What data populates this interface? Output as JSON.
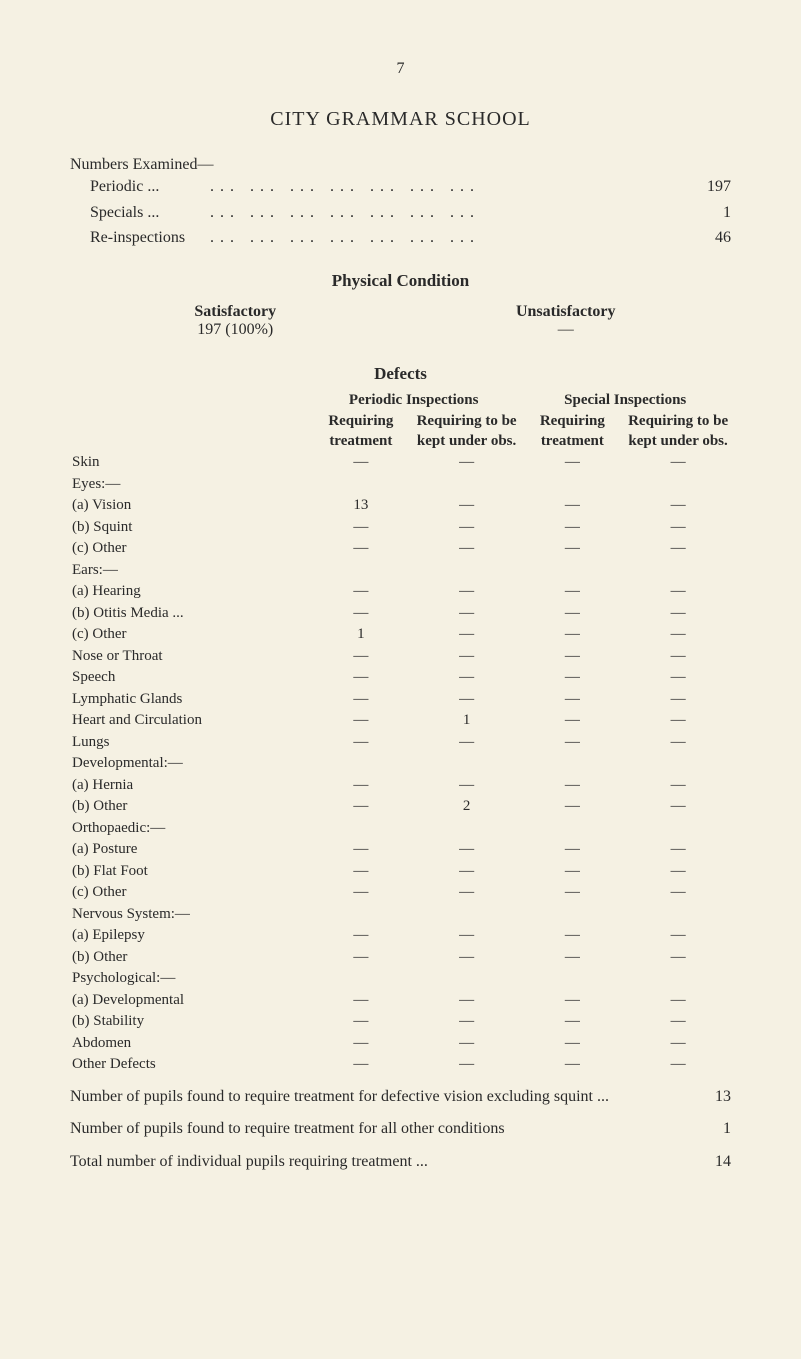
{
  "pageNumber": "7",
  "title": "CITY GRAMMAR SCHOOL",
  "numbersExamined": {
    "heading": "Numbers Examined—",
    "rows": [
      {
        "label": "Periodic ...",
        "value": "197"
      },
      {
        "label": "Specials ...",
        "value": "1"
      },
      {
        "label": "Re-inspections",
        "value": "46"
      }
    ]
  },
  "physicalCondition": {
    "heading": "Physical Condition",
    "satisfactory": {
      "label": "Satisfactory",
      "value": "197 (100%)"
    },
    "unsatisfactory": {
      "label": "Unsatisfactory",
      "value": "—"
    }
  },
  "defects": {
    "heading": "Defects",
    "periodicLabel": "Periodic Inspections",
    "specialLabel": "Special Inspections",
    "colHeaders": {
      "c1": "Requiring treatment",
      "c2": "Requiring to be kept under obs.",
      "c3": "Requiring treatment",
      "c4": "Requiring to be kept under obs."
    },
    "rows": [
      {
        "label": "Skin",
        "indent": 0,
        "vals": [
          "—",
          "—",
          "—",
          "—"
        ]
      },
      {
        "label": "Eyes:—",
        "indent": 0,
        "vals": [
          "",
          "",
          "",
          ""
        ]
      },
      {
        "label": "(a) Vision",
        "indent": 1,
        "vals": [
          "13",
          "—",
          "—",
          "—"
        ]
      },
      {
        "label": "(b) Squint",
        "indent": 1,
        "vals": [
          "—",
          "—",
          "—",
          "—"
        ]
      },
      {
        "label": "(c) Other",
        "indent": 1,
        "vals": [
          "—",
          "—",
          "—",
          "—"
        ]
      },
      {
        "label": "Ears:—",
        "indent": 0,
        "vals": [
          "",
          "",
          "",
          ""
        ]
      },
      {
        "label": "(a) Hearing",
        "indent": 1,
        "vals": [
          "—",
          "—",
          "—",
          "—"
        ]
      },
      {
        "label": "(b) Otitis Media ...",
        "indent": 1,
        "vals": [
          "—",
          "—",
          "—",
          "—"
        ]
      },
      {
        "label": "(c) Other",
        "indent": 1,
        "vals": [
          "1",
          "—",
          "—",
          "—"
        ]
      },
      {
        "label": "Nose or Throat",
        "indent": 0,
        "vals": [
          "—",
          "—",
          "—",
          "—"
        ]
      },
      {
        "label": "Speech",
        "indent": 0,
        "vals": [
          "—",
          "—",
          "—",
          "—"
        ]
      },
      {
        "label": "Lymphatic Glands",
        "indent": 0,
        "vals": [
          "—",
          "—",
          "—",
          "—"
        ]
      },
      {
        "label": "Heart and Circulation",
        "indent": 0,
        "vals": [
          "—",
          "1",
          "—",
          "—"
        ]
      },
      {
        "label": "Lungs",
        "indent": 0,
        "vals": [
          "—",
          "—",
          "—",
          "—"
        ]
      },
      {
        "label": "Developmental:—",
        "indent": 0,
        "vals": [
          "",
          "",
          "",
          ""
        ]
      },
      {
        "label": "(a) Hernia",
        "indent": 1,
        "vals": [
          "—",
          "—",
          "—",
          "—"
        ]
      },
      {
        "label": "(b) Other",
        "indent": 1,
        "vals": [
          "—",
          "2",
          "—",
          "—"
        ]
      },
      {
        "label": "Orthopaedic:—",
        "indent": 0,
        "vals": [
          "",
          "",
          "",
          ""
        ]
      },
      {
        "label": "(a) Posture",
        "indent": 1,
        "vals": [
          "—",
          "—",
          "—",
          "—"
        ]
      },
      {
        "label": "(b) Flat Foot",
        "indent": 1,
        "vals": [
          "—",
          "—",
          "—",
          "—"
        ]
      },
      {
        "label": "(c) Other",
        "indent": 1,
        "vals": [
          "—",
          "—",
          "—",
          "—"
        ]
      },
      {
        "label": "Nervous System:—",
        "indent": 0,
        "vals": [
          "",
          "",
          "",
          ""
        ]
      },
      {
        "label": "(a) Epilepsy",
        "indent": 1,
        "vals": [
          "—",
          "—",
          "—",
          "—"
        ]
      },
      {
        "label": "(b) Other",
        "indent": 1,
        "vals": [
          "—",
          "—",
          "—",
          "—"
        ]
      },
      {
        "label": "Psychological:—",
        "indent": 0,
        "vals": [
          "",
          "",
          "",
          ""
        ]
      },
      {
        "label": "(a) Developmental",
        "indent": 1,
        "vals": [
          "—",
          "—",
          "—",
          "—"
        ]
      },
      {
        "label": "(b) Stability",
        "indent": 1,
        "vals": [
          "—",
          "—",
          "—",
          "—"
        ]
      },
      {
        "label": "Abdomen",
        "indent": 0,
        "vals": [
          "—",
          "—",
          "—",
          "—"
        ]
      },
      {
        "label": "Other Defects",
        "indent": 0,
        "vals": [
          "—",
          "—",
          "—",
          "—"
        ]
      }
    ]
  },
  "summary": [
    {
      "text": "Number of pupils found to require treatment for defective vision excluding squint ...",
      "value": "13"
    },
    {
      "text": "Number of pupils found to require treatment for all other conditions",
      "value": "1"
    },
    {
      "text": "Total number of individual pupils requiring treatment ...",
      "value": "14"
    }
  ],
  "colors": {
    "background": "#f5f1e3",
    "text": "#2a2a2a"
  }
}
